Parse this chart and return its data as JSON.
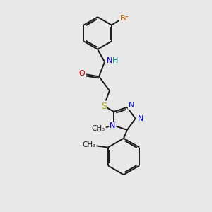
{
  "background_color": "#e8e8e8",
  "bond_color": "#1a1a1a",
  "atom_colors": {
    "Br": "#b35900",
    "N": "#0000cc",
    "O": "#cc0000",
    "S": "#aaaa00",
    "C": "#1a1a1a",
    "H": "#008888"
  },
  "figsize": [
    3.0,
    3.0
  ],
  "dpi": 100,
  "lw": 1.4,
  "fontsize": 7.5
}
